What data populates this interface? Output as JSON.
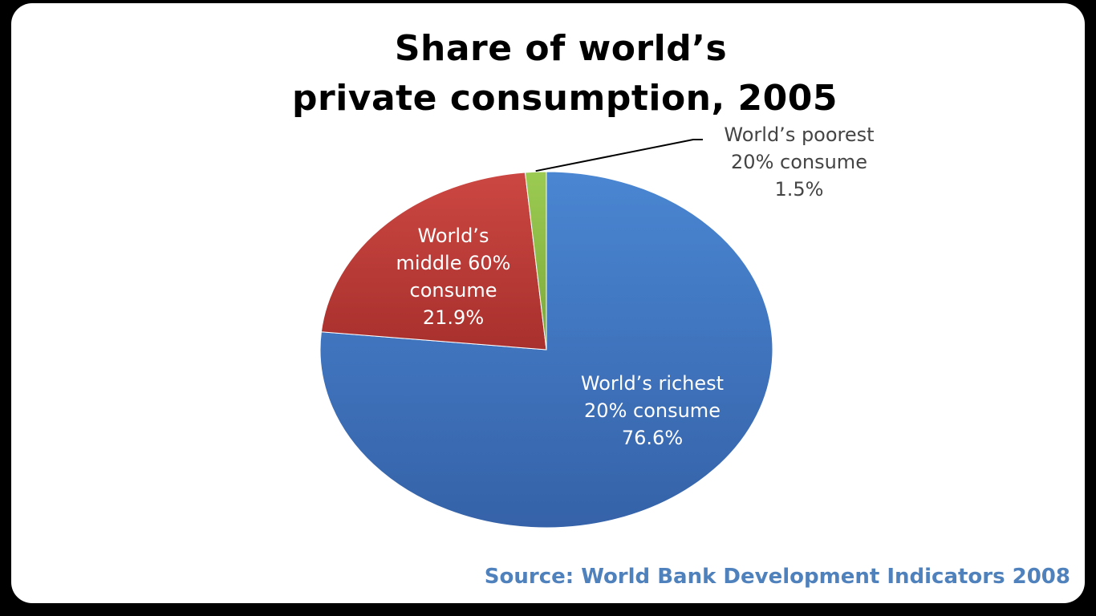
{
  "chart_data": {
    "type": "pie",
    "title": {
      "line1": "Share of world’s",
      "line2": "private consumption, 2005"
    },
    "slices": [
      {
        "label_lines": [
          "World’s richest",
          "20% consume",
          "76.6%"
        ],
        "value": 76.6,
        "color": "#3C73BE"
      },
      {
        "label_lines": [
          "World’s",
          "middle 60%",
          "consume",
          "21.9%"
        ],
        "value": 21.9,
        "color": "#C0403C"
      },
      {
        "label_lines": [
          "World’s poorest",
          "20% consume",
          "1.5%"
        ],
        "value": 1.5,
        "color": "#8DBB45"
      }
    ],
    "legend": "none",
    "source": "Source: World Bank Development Indicators 2008"
  }
}
